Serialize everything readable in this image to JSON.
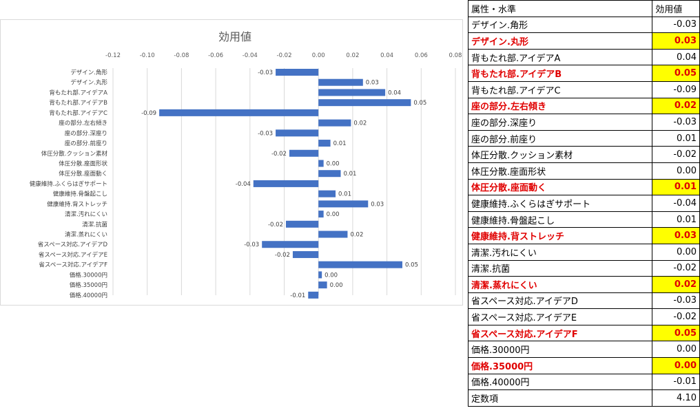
{
  "chart_data": {
    "type": "bar",
    "orientation": "horizontal",
    "title": "効用値",
    "xlim": [
      -0.12,
      0.08
    ],
    "xticks": [
      "-0.12",
      "-0.10",
      "-0.08",
      "-0.06",
      "-0.04",
      "-0.02",
      "0.00",
      "0.02",
      "0.04",
      "0.06",
      "0.08"
    ],
    "grid": true,
    "bar_color": "#4472c4",
    "categories": [
      "デザイン.角形",
      "デザイン.丸形",
      "背もたれ部.アイデアA",
      "背もたれ部.アイデアB",
      "背もたれ部.アイデアC",
      "座の部分.左右傾き",
      "座の部分.深座り",
      "座の部分.前座り",
      "体圧分散.クッション素材",
      "体圧分散.座面形状",
      "体圧分散.座面動く",
      "健康維持.ふくらはぎサポート",
      "健康維持.骨盤起こし",
      "健康維持.背ストレッチ",
      "清潔.汚れにくい",
      "清潔.抗菌",
      "清潔.蒸れにくい",
      "省スペース対応.アイデアD",
      "省スペース対応.アイデアE",
      "省スペース対応.アイデアF",
      "価格.30000円",
      "価格.35000円",
      "価格.40000円"
    ],
    "values": [
      -0.025,
      0.026,
      0.039,
      0.054,
      -0.093,
      0.019,
      -0.025,
      0.007,
      -0.017,
      0.003,
      0.013,
      -0.038,
      0.01,
      0.029,
      0.003,
      -0.019,
      0.017,
      -0.033,
      -0.015,
      0.049,
      0.002,
      0.005,
      -0.006
    ],
    "data_labels": [
      "-0.03",
      "0.03",
      "0.04",
      "0.05",
      "-0.09",
      "0.02",
      "-0.03",
      "0.01",
      "-0.02",
      "0.00",
      "0.01",
      "-0.04",
      "0.01",
      "0.03",
      "0.00",
      "-0.02",
      "0.02",
      "-0.03",
      "-0.02",
      "0.05",
      "0.00",
      "0.00",
      "-0.01"
    ]
  },
  "table": {
    "header": {
      "name": "属性・水準",
      "value": "効用値"
    },
    "rows": [
      {
        "name": "デザイン.角形",
        "value": "-0.03",
        "highlight": false
      },
      {
        "name": "デザイン.丸形",
        "value": "0.03",
        "highlight": true
      },
      {
        "name": "背もたれ部.アイデアA",
        "value": "0.04",
        "highlight": false
      },
      {
        "name": "背もたれ部.アイデアB",
        "value": "0.05",
        "highlight": true
      },
      {
        "name": "背もたれ部.アイデアC",
        "value": "-0.09",
        "highlight": false
      },
      {
        "name": "座の部分.左右傾き",
        "value": "0.02",
        "highlight": true
      },
      {
        "name": "座の部分.深座り",
        "value": "-0.03",
        "highlight": false
      },
      {
        "name": "座の部分.前座り",
        "value": "0.01",
        "highlight": false
      },
      {
        "name": "体圧分散.クッション素材",
        "value": "-0.02",
        "highlight": false
      },
      {
        "name": "体圧分散.座面形状",
        "value": "0.00",
        "highlight": false
      },
      {
        "name": "体圧分散.座面動く",
        "value": "0.01",
        "highlight": true
      },
      {
        "name": "健康維持.ふくらはぎサポート",
        "value": "-0.04",
        "highlight": false
      },
      {
        "name": "健康維持.骨盤起こし",
        "value": "0.01",
        "highlight": false
      },
      {
        "name": "健康維持.背ストレッチ",
        "value": "0.03",
        "highlight": true
      },
      {
        "name": "清潔.汚れにくい",
        "value": "0.00",
        "highlight": false
      },
      {
        "name": "清潔.抗菌",
        "value": "-0.02",
        "highlight": false
      },
      {
        "name": "清潔.蒸れにくい",
        "value": "0.02",
        "highlight": true
      },
      {
        "name": "省スペース対応.アイデアD",
        "value": "-0.03",
        "highlight": false
      },
      {
        "name": "省スペース対応.アイデアE",
        "value": "-0.02",
        "highlight": false
      },
      {
        "name": "省スペース対応.アイデアF",
        "value": "0.05",
        "highlight": true
      },
      {
        "name": "価格.30000円",
        "value": "0.00",
        "highlight": false
      },
      {
        "name": "価格.35000円",
        "value": "0.00",
        "highlight": true
      },
      {
        "name": "価格.40000円",
        "value": "-0.01",
        "highlight": false
      },
      {
        "name": "定数項",
        "value": "4.10",
        "highlight": false
      }
    ],
    "highlight_color": "#ffff00",
    "highlight_text_color": "#e00000"
  }
}
